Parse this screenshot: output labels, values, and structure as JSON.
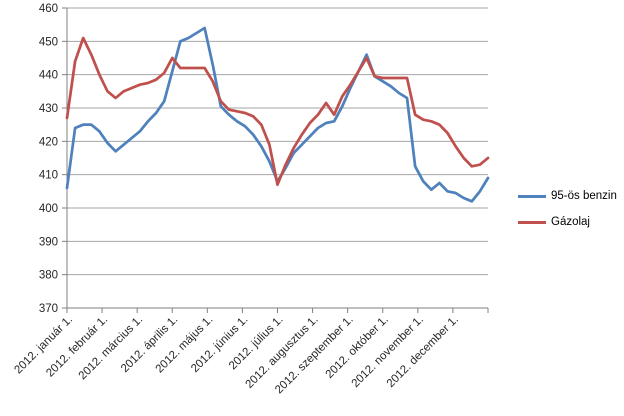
{
  "chart_data": {
    "type": "line",
    "title": "",
    "xlabel": "",
    "ylabel": "",
    "ylim": [
      370,
      460
    ],
    "ytick_step": 10,
    "grid": "horizontal",
    "legend_position": "right",
    "x_tick_labels": [
      "2012. január 1.",
      "2012. február 1.",
      "2012. március 1.",
      "2012. április 1.",
      "2012. május 1.",
      "2012. június 1.",
      "2012. július 1.",
      "2012. augusztus 1.",
      "2012. szeptember 1.",
      "2012. október 1.",
      "2012. november 1.",
      "2012. december 1."
    ],
    "x_unit": "weekly samples, Jan 1 – Dec 31 2012",
    "series": [
      {
        "name": "95-ös benzin",
        "color": "#4F81BD",
        "values": [
          406,
          424,
          425,
          425,
          423,
          419.5,
          417,
          419,
          421,
          423,
          426,
          428.5,
          432,
          441,
          450,
          451,
          452.5,
          454,
          443,
          430.5,
          428,
          426,
          424.5,
          422,
          418.5,
          414,
          408,
          412,
          416.5,
          419,
          421.5,
          424,
          425.5,
          426,
          430.5,
          436,
          441,
          446,
          439.5,
          438,
          436.5,
          434.5,
          433,
          412.5,
          408,
          405.5,
          407.5,
          405,
          404.5,
          403,
          402,
          405,
          409
        ]
      },
      {
        "name": "Gázolaj",
        "color": "#C0504D",
        "values": [
          427,
          444,
          451,
          446,
          440,
          435,
          433,
          435,
          436,
          437,
          437.5,
          438.5,
          440.5,
          445,
          442,
          442,
          442,
          442,
          438,
          432,
          429.5,
          429,
          428.5,
          427.5,
          425,
          419,
          407,
          413,
          418,
          422,
          425.5,
          428,
          431.5,
          428,
          433.5,
          437,
          441,
          445,
          439.5,
          439,
          439,
          439,
          439,
          428,
          426.5,
          426,
          425,
          422.5,
          418.5,
          415,
          412.5,
          413,
          415
        ]
      }
    ],
    "axis_colors": {
      "axis_line": "#808080",
      "gridline": "#A6A6A6",
      "tick_text": "#262626"
    }
  }
}
